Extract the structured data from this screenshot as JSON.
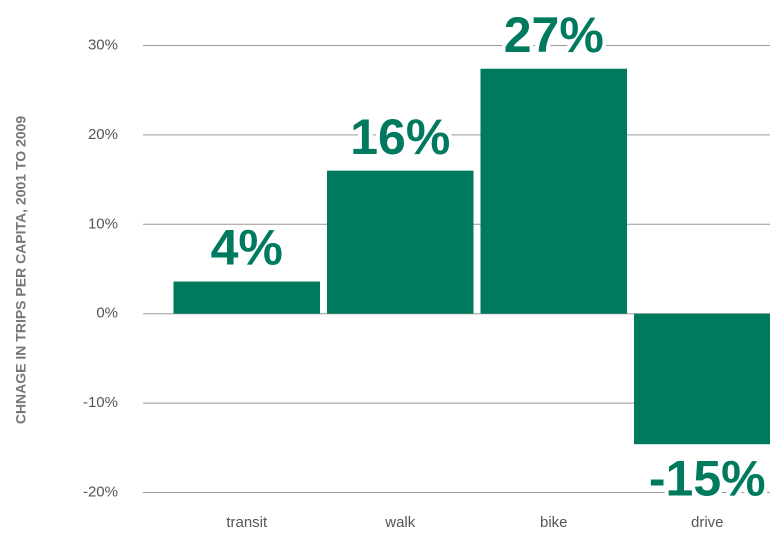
{
  "chart_data": {
    "type": "bar",
    "y_axis_label": "CHNAGE IN TRIPS PER CAPITA, 2001 TO 2009",
    "categories": [
      "transit",
      "walk",
      "bike",
      "drive"
    ],
    "values": [
      3.6,
      16,
      27.4,
      -14.6
    ],
    "value_labels": [
      "4%",
      "16%",
      "27%",
      "-15%"
    ],
    "color": "#007a5e",
    "ylim": [
      -20,
      30
    ],
    "yticks": [
      {
        "value": 30,
        "label": "30%"
      },
      {
        "value": 20,
        "label": "20%"
      },
      {
        "value": 10,
        "label": "10%"
      },
      {
        "value": 0,
        "label": "0%"
      },
      {
        "value": -10,
        "label": "-10%"
      },
      {
        "value": -20,
        "label": "-20%"
      }
    ],
    "grid": true
  }
}
